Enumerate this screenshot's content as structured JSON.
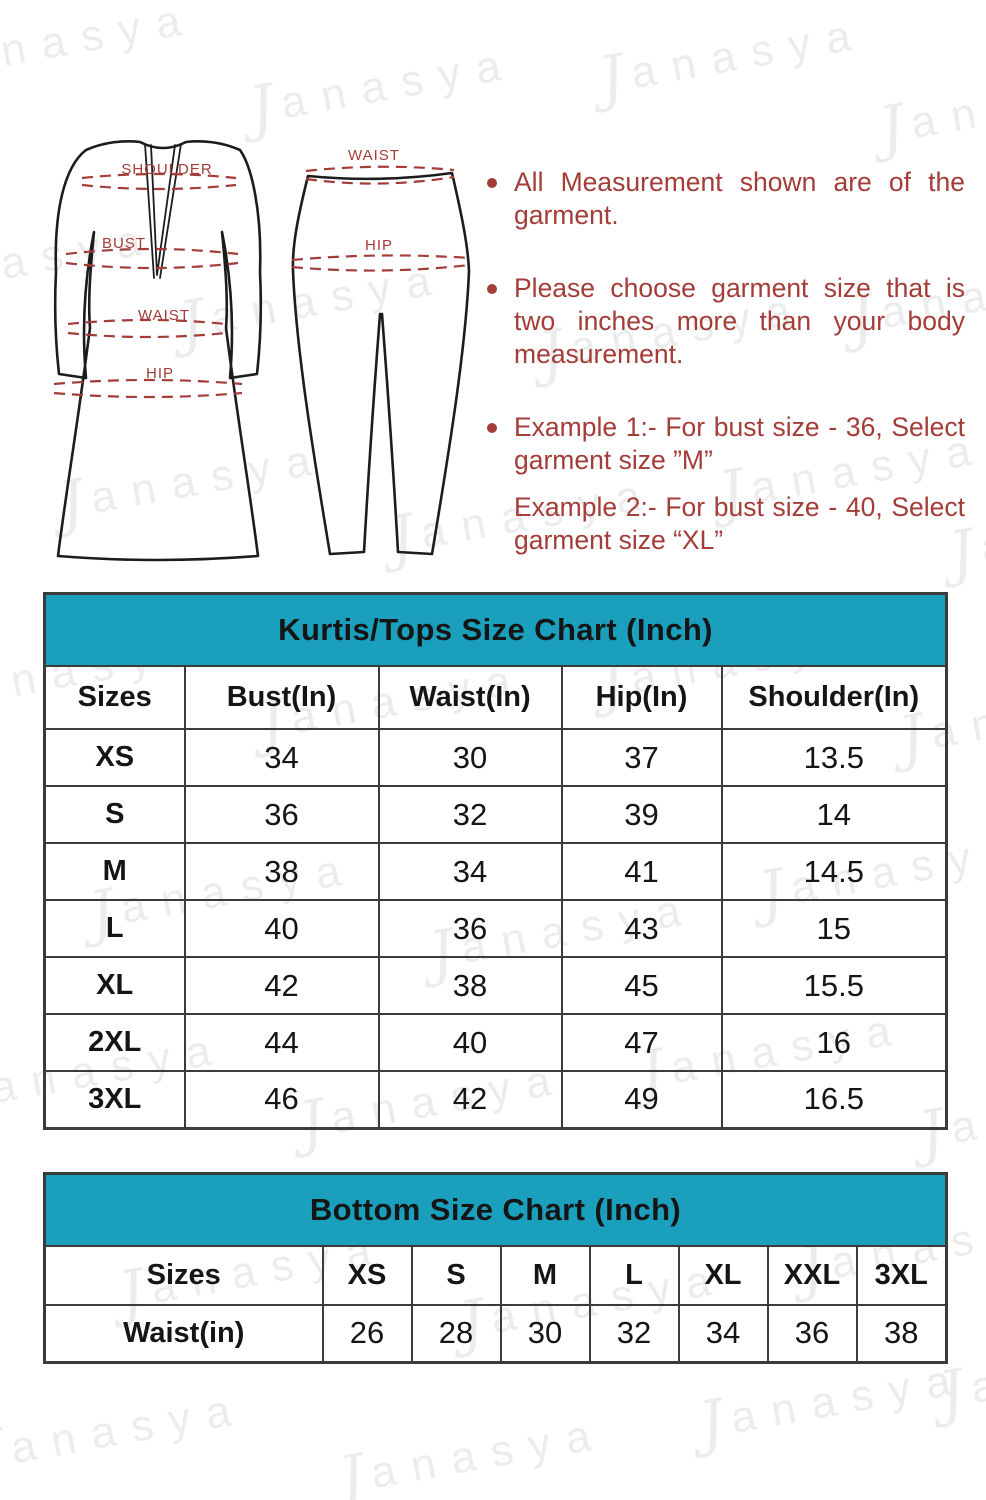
{
  "watermark": {
    "initial": "J",
    "rest": "anasya",
    "full": "Janasya"
  },
  "colors": {
    "teal": "#1aa0bd",
    "red": "#a43c38",
    "border": "#3b3b3b",
    "watermark": "#ececec"
  },
  "diagram": {
    "kurti": {
      "labels": {
        "shoulder": "SHOULDER",
        "bust": "BUST",
        "waist": "WAIST",
        "hip": "HIP"
      }
    },
    "leggings": {
      "labels": {
        "waist": "WAIST",
        "hip": "HIP"
      }
    }
  },
  "notes": {
    "items": [
      {
        "text": "All Measurement shown are of the garment."
      },
      {
        "text": "Please choose garment size that is two inches more than your body measurement."
      },
      {
        "example1": "Example 1:- For bust size - 36, Select garment size ”M”",
        "example2": "Example 2:- For bust size - 40, Select garment size “XL”"
      }
    ]
  },
  "tops_table": {
    "title": "Kurtis/Tops Size Chart (Inch)",
    "headers": [
      "Sizes",
      "Bust(In)",
      "Waist(In)",
      "Hip(In)",
      "Shoulder(In)"
    ],
    "rows": [
      {
        "size": "XS",
        "bust": "34",
        "waist": "30",
        "hip": "37",
        "shoulder": "13.5"
      },
      {
        "size": "S",
        "bust": "36",
        "waist": "32",
        "hip": "39",
        "shoulder": "14"
      },
      {
        "size": "M",
        "bust": "38",
        "waist": "34",
        "hip": "41",
        "shoulder": "14.5"
      },
      {
        "size": "L",
        "bust": "40",
        "waist": "36",
        "hip": "43",
        "shoulder": "15"
      },
      {
        "size": "XL",
        "bust": "42",
        "waist": "38",
        "hip": "45",
        "shoulder": "15.5"
      },
      {
        "size": "2XL",
        "bust": "44",
        "waist": "40",
        "hip": "47",
        "shoulder": "16"
      },
      {
        "size": "3XL",
        "bust": "46",
        "waist": "42",
        "hip": "49",
        "shoulder": "16.5"
      }
    ]
  },
  "bottom_table": {
    "title": "Bottom Size Chart (Inch)",
    "headers": [
      "Sizes",
      "XS",
      "S",
      "M",
      "L",
      "XL",
      "XXL",
      "3XL"
    ],
    "row_label": "Waist(in)",
    "values": [
      "26",
      "28",
      "30",
      "32",
      "34",
      "36",
      "38"
    ]
  }
}
